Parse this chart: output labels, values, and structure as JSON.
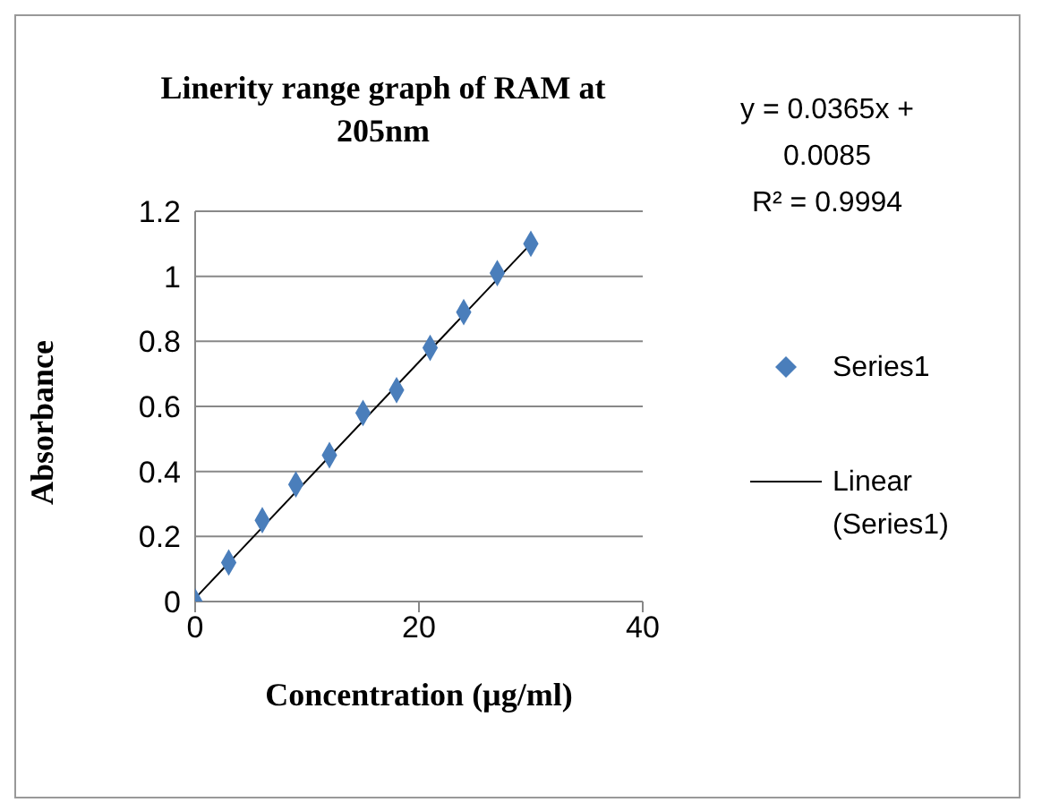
{
  "chart_data": {
    "type": "scatter",
    "title": "Linerity range graph of RAM at 205nm",
    "xlabel": "Concentration (µg/ml)",
    "ylabel": "Absorbance",
    "annotations": [
      "y = 0.0365x + 0.0085",
      "R² = 0.9994"
    ],
    "series": [
      {
        "name": "Series1",
        "color": "#4a7ebb",
        "marker": "diamond",
        "x": [
          0,
          3,
          6,
          9,
          12,
          15,
          18,
          21,
          24,
          27,
          30
        ],
        "values": [
          0,
          0.12,
          0.25,
          0.36,
          0.45,
          0.58,
          0.65,
          0.78,
          0.89,
          1.01,
          1.1
        ]
      },
      {
        "name": "Linear (Series1)",
        "type": "line",
        "color": "#000000",
        "marker": "none",
        "line_style": "solid",
        "x": [
          0,
          30
        ],
        "values": [
          0.01,
          1.1
        ]
      }
    ],
    "xlim": [
      0,
      40
    ],
    "xticks": [
      0,
      20,
      40
    ],
    "ylim": [
      0,
      1.2
    ],
    "yticks": [
      0,
      0.2,
      0.4,
      0.6,
      0.8,
      1,
      1.2
    ],
    "grid": "y",
    "legend": "right"
  }
}
